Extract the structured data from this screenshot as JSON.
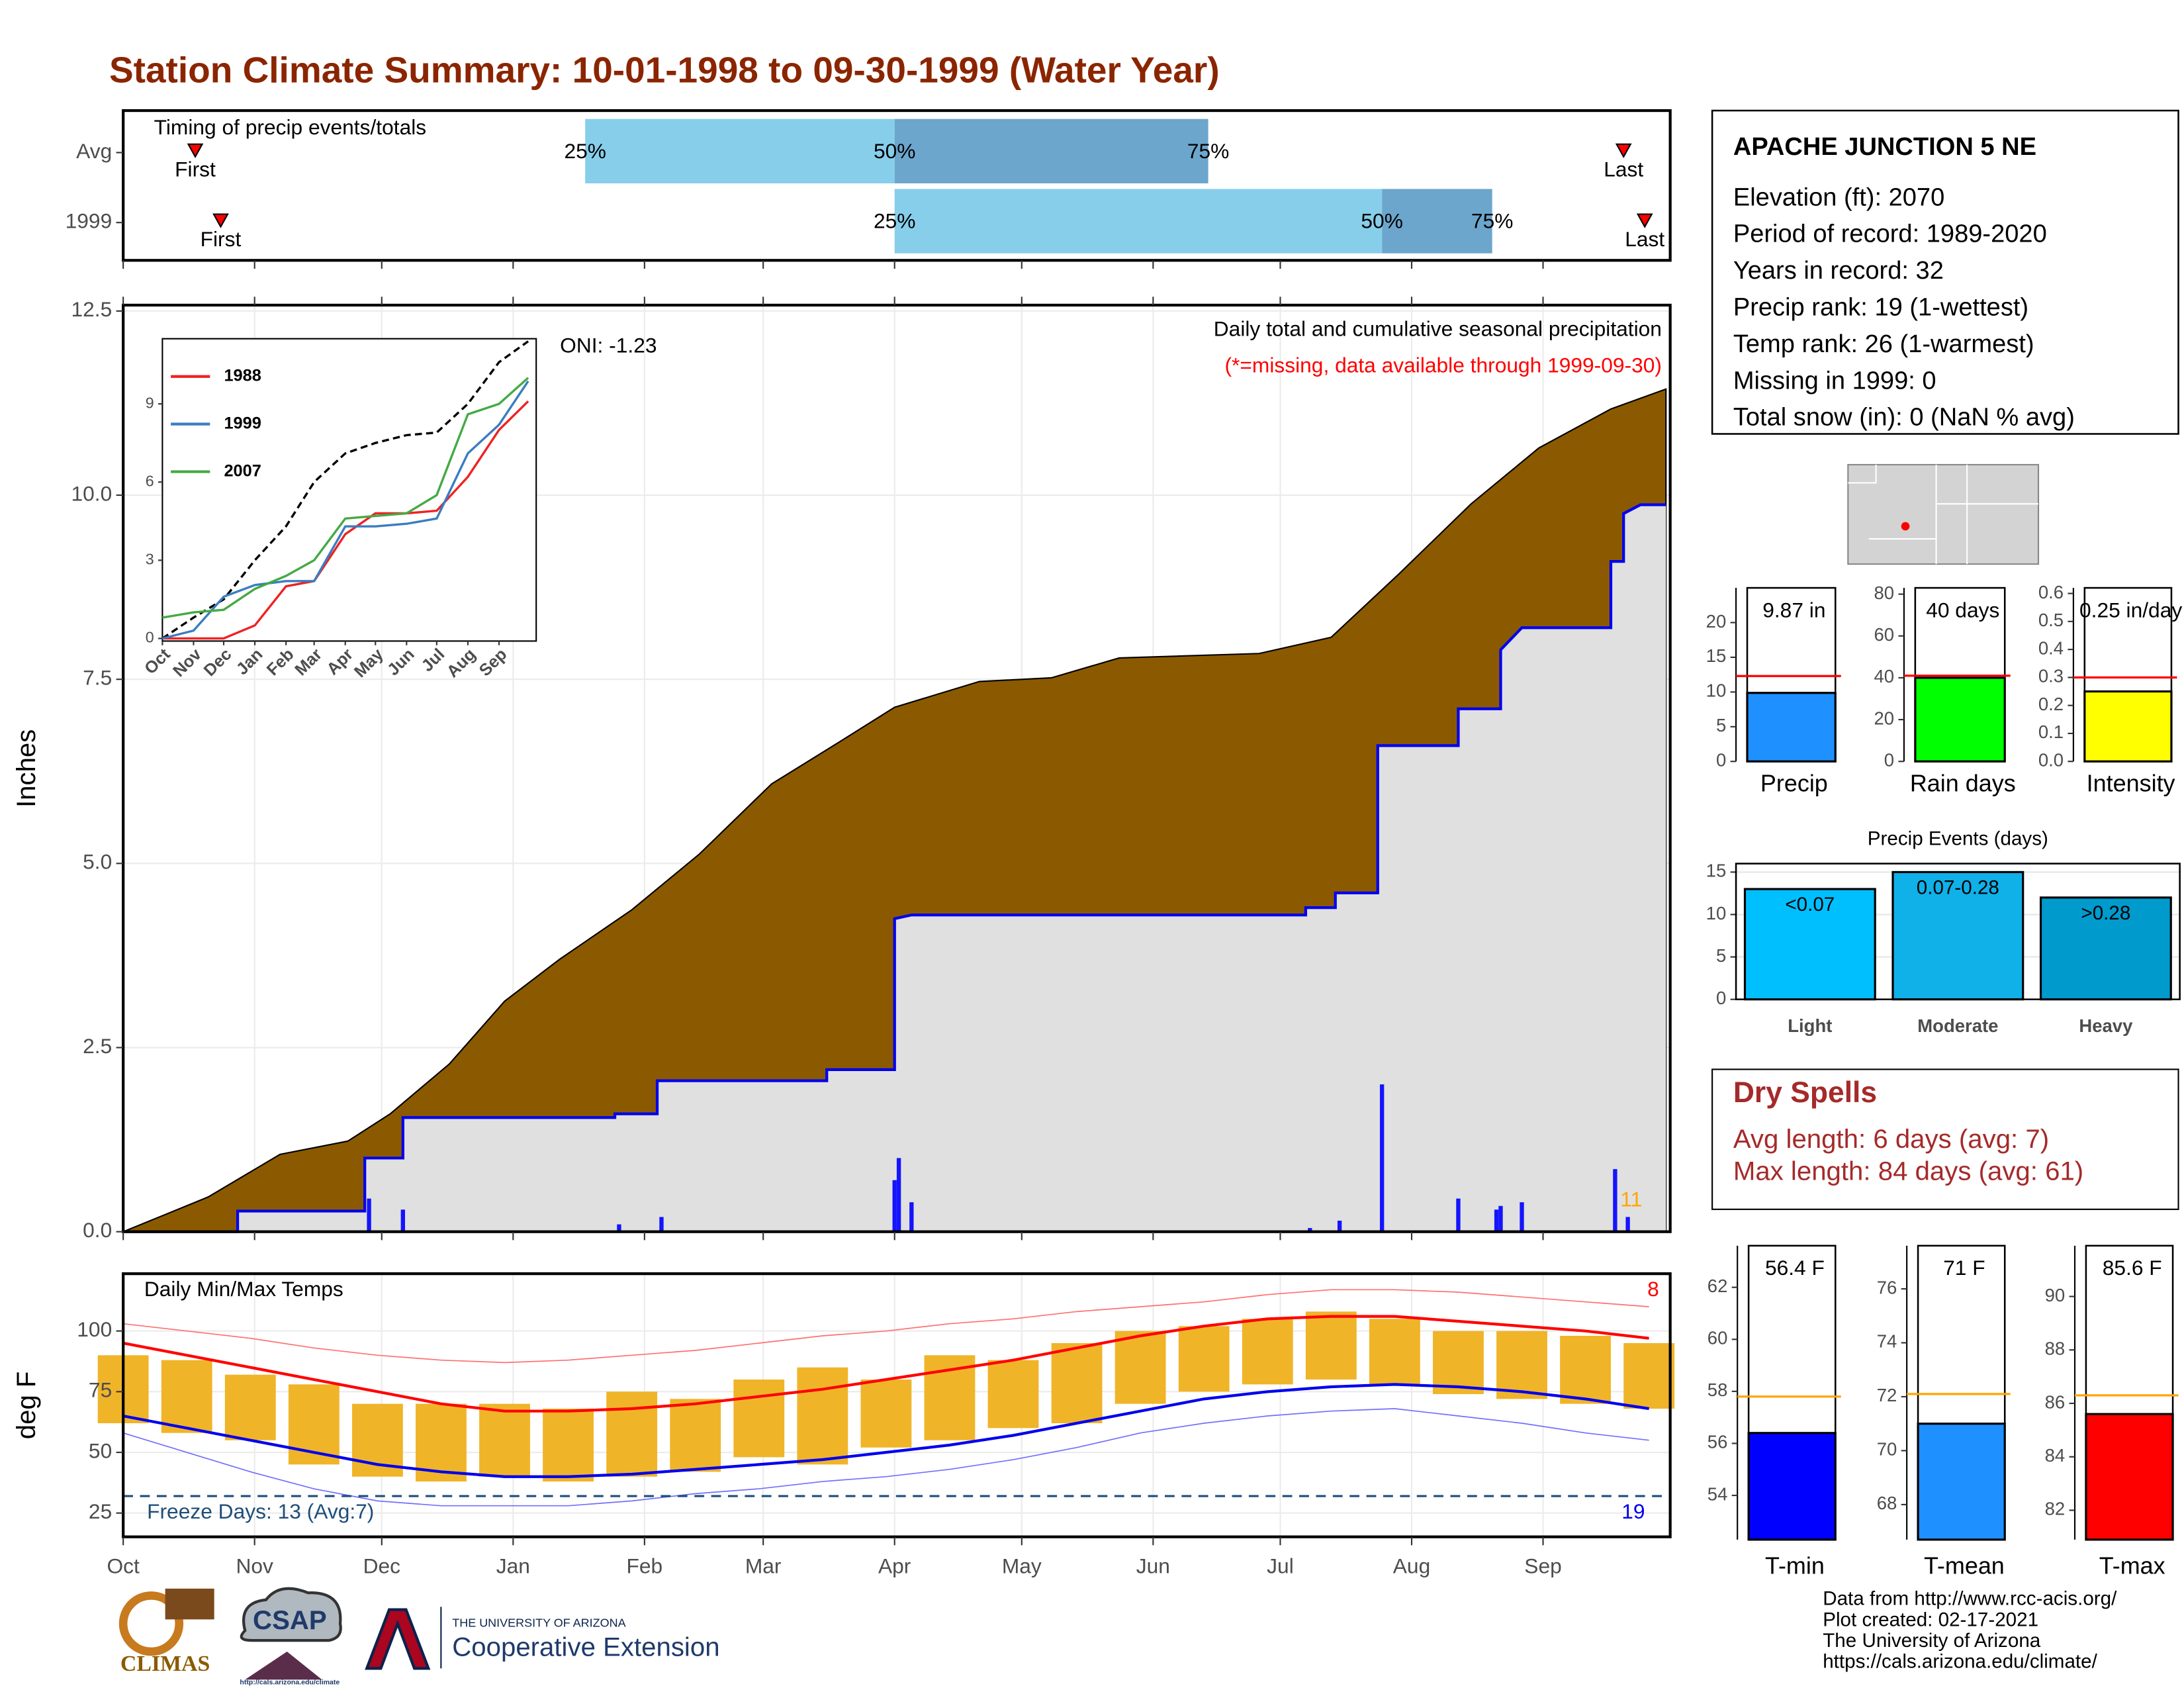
{
  "title": "Station Climate Summary: 10-01-1998 to 09-30-1999 (Water Year)",
  "station": {
    "name": "APACHE JUNCTION 5 NE",
    "lines": [
      "Elevation (ft): 2070",
      "Period of record: 1989-2020",
      "Years in record: 32",
      "Precip rank: 19 (1-wettest)",
      "Temp rank: 26 (1-warmest)",
      "Missing in 1999: 0",
      "Total snow (in): 0 (NaN % avg)"
    ]
  },
  "dry_spells": {
    "title": "Dry Spells",
    "lines": [
      "Avg length: 6 days (avg: 7)",
      "Max length: 84 days (avg: 61)"
    ]
  },
  "footer": [
    "Data from http://www.rcc-acis.org/",
    "Plot created: 02-17-2021",
    "The University of Arizona",
    "https://cals.arizona.edu/climate/"
  ],
  "logos": {
    "climas": "CLIMAS",
    "csap": "CSAP",
    "csap_url": "http://cals.arizona.edu/climate",
    "university": "THE UNIVERSITY OF ARIZONA",
    "extension": "Cooperative Extension"
  },
  "chart_data": [
    {
      "type": "timing",
      "title": "Timing of precip events/totals",
      "categories": [
        "Avg",
        "1999"
      ],
      "marker_labels": [
        "First",
        "25%",
        "50%",
        "75%",
        "Last"
      ],
      "first": [
        17,
        23
      ],
      "q25": [
        109,
        182
      ],
      "q50": [
        182,
        297
      ],
      "q75": [
        256,
        323
      ],
      "last": [
        354,
        359
      ],
      "xlim": [
        0,
        365
      ],
      "colors": [
        "#87ceeb",
        "#6ca6cd"
      ],
      "marker_color": "#ff0000"
    },
    {
      "type": "cumulative",
      "title": "Daily total and cumulative seasonal precipitation",
      "subtitle": "(*=missing, data available through 1999-09-30)",
      "annotation": "ONI: -1.23",
      "count_label": "11",
      "y_label": "Inches",
      "xlim": [
        0,
        365
      ],
      "ylim": [
        0,
        12.58
      ],
      "yticks": [
        {
          "value": 0,
          "label": "0.0"
        },
        2.5,
        {
          "value": 5,
          "label": "5.0"
        },
        7.5,
        {
          "value": 10,
          "label": "10.0"
        },
        12.5
      ],
      "xticks": [
        {
          "value": 0,
          "label": "Oct"
        },
        {
          "value": 31,
          "label": "Nov"
        },
        {
          "value": 61,
          "label": "Dec"
        },
        {
          "value": 92,
          "label": "Jan"
        },
        {
          "value": 123,
          "label": "Feb"
        },
        {
          "value": 151,
          "label": "Mar"
        },
        {
          "value": 182,
          "label": "Apr"
        },
        {
          "value": 212,
          "label": "May"
        },
        {
          "value": 243,
          "label": "Jun"
        },
        {
          "value": 273,
          "label": "Jul"
        },
        {
          "value": 304,
          "label": "Aug"
        },
        {
          "value": 335,
          "label": "Sep"
        }
      ],
      "avg_x": [
        0,
        20,
        37,
        53,
        63,
        77,
        90,
        103,
        120,
        136,
        153,
        169,
        182,
        202,
        219,
        235,
        268,
        285,
        301,
        318,
        334,
        351,
        364
      ],
      "avg_values": [
        0,
        0.47,
        1.05,
        1.23,
        1.6,
        2.28,
        3.13,
        3.7,
        4.37,
        5.13,
        6.08,
        6.65,
        7.12,
        7.47,
        7.52,
        7.79,
        7.85,
        8.07,
        8.93,
        9.88,
        10.64,
        11.17,
        11.44
      ],
      "x": [
        0,
        27,
        27,
        57,
        57,
        66,
        66,
        116,
        116,
        126,
        126,
        166,
        166,
        182,
        182,
        186,
        279,
        279,
        286,
        286,
        296,
        296,
        315,
        315,
        325,
        325,
        330,
        351,
        351,
        354,
        354,
        358,
        364
      ],
      "values": [
        0,
        0,
        0.28,
        0.28,
        1.0,
        1.0,
        1.55,
        1.55,
        1.6,
        1.6,
        2.05,
        2.05,
        2.2,
        2.2,
        4.25,
        4.3,
        4.3,
        4.4,
        4.4,
        4.6,
        4.6,
        6.6,
        6.6,
        7.1,
        7.1,
        7.9,
        8.2,
        8.2,
        9.1,
        9.1,
        9.75,
        9.87,
        9.87
      ],
      "daily_x": [
        58,
        66,
        117,
        127,
        182,
        183,
        186,
        280,
        287,
        297,
        315,
        324,
        325,
        330,
        352,
        355
      ],
      "daily_values": [
        0.45,
        0.3,
        0.1,
        0.2,
        0.7,
        1.0,
        0.4,
        0.05,
        0.15,
        2.0,
        0.45,
        0.3,
        0.35,
        0.4,
        0.85,
        0.2
      ],
      "area_color": "#8b5a00",
      "fill_color": "#e0e0e0",
      "line_color": "#0000ee",
      "bar_color": "#1414ff",
      "count_color": "#ffa500",
      "subtitle_color": "#ff0000",
      "grid": true
    },
    {
      "type": "line",
      "xlim": [
        0,
        372
      ],
      "ylim": [
        -0.1,
        11.5
      ],
      "yticks": [
        0,
        3,
        6,
        9
      ],
      "xticks": [
        {
          "value": 0,
          "label": "Oct"
        },
        {
          "value": 31,
          "label": "Nov"
        },
        {
          "value": 61,
          "label": "Dec"
        },
        {
          "value": 92,
          "label": "Jan"
        },
        {
          "value": 123,
          "label": "Feb"
        },
        {
          "value": 151,
          "label": "Mar"
        },
        {
          "value": 182,
          "label": "Apr"
        },
        {
          "value": 212,
          "label": "May"
        },
        {
          "value": 243,
          "label": "Jun"
        },
        {
          "value": 273,
          "label": "Jul"
        },
        {
          "value": 304,
          "label": "Aug"
        },
        {
          "value": 335,
          "label": "Sep"
        }
      ],
      "x": [
        0,
        31,
        61,
        92,
        123,
        151,
        182,
        212,
        243,
        273,
        304,
        335,
        364
      ],
      "series": [
        {
          "color": "#000000",
          "dashed": true,
          "values": [
            0,
            0.8,
            1.5,
            3.0,
            4.3,
            6.0,
            7.1,
            7.5,
            7.8,
            7.9,
            9.0,
            10.6,
            11.4
          ]
        },
        {
          "name": "1988",
          "color": "#ee2222",
          "values": [
            0,
            0,
            0,
            0.5,
            2.0,
            2.2,
            4.0,
            4.8,
            4.8,
            4.9,
            6.2,
            8.0,
            9.1
          ]
        },
        {
          "name": "1999",
          "color": "#3a7dc0",
          "values": [
            0,
            0.3,
            1.6,
            2.05,
            2.2,
            2.2,
            4.3,
            4.3,
            4.4,
            4.6,
            7.1,
            8.2,
            9.87
          ]
        },
        {
          "name": "2007",
          "color": "#44aa44",
          "values": [
            0.8,
            1.0,
            1.1,
            1.9,
            2.4,
            3.0,
            4.6,
            4.7,
            4.8,
            5.5,
            8.6,
            9.0,
            10.0
          ]
        }
      ]
    },
    {
      "type": "single_bar",
      "categories": [
        "Precip"
      ],
      "values": [
        9.87
      ],
      "value_labels": [
        "9.87 in"
      ],
      "reference": 12.3,
      "ylim": [
        0,
        25
      ],
      "yticks": [
        0,
        5,
        10,
        15,
        20
      ],
      "color": "#1e90ff",
      "reference_color": "#ff0000"
    },
    {
      "type": "single_bar",
      "categories": [
        "Rain days"
      ],
      "values": [
        40
      ],
      "value_labels": [
        "40 days"
      ],
      "reference": 41,
      "ylim": [
        0,
        83
      ],
      "yticks": [
        0,
        20,
        40,
        60,
        80
      ],
      "color": "#00ff00",
      "reference_color": "#ff0000"
    },
    {
      "type": "single_bar",
      "categories": [
        "Intensity"
      ],
      "values": [
        0.25
      ],
      "value_labels": [
        "0.25 in/day"
      ],
      "reference": 0.3,
      "ylim": [
        0,
        0.62
      ],
      "yticks": [
        {
          "value": 0,
          "label": "0.0"
        },
        0.1,
        0.2,
        0.3,
        0.4,
        0.5,
        0.6
      ],
      "color": "#ffff00",
      "reference_color": "#ff0000"
    },
    {
      "type": "bar",
      "title": "Precip Events (days)",
      "categories": [
        "Light",
        "Moderate",
        "Heavy"
      ],
      "values": [
        13,
        15,
        12
      ],
      "bar_labels": [
        "<0.07",
        "0.07-0.28",
        ">0.28"
      ],
      "colors": [
        "#00bfff",
        "#10b0e8",
        "#009acd"
      ],
      "ylim": [
        0,
        16
      ],
      "yticks": [
        0,
        5,
        10,
        15
      ],
      "grid": true
    },
    {
      "type": "temperature",
      "title": "Daily Min/Max Temps",
      "freeze_label": "Freeze Days: 13 (Avg:7)",
      "high_count": "8",
      "low_count": "19",
      "y_label": "deg F",
      "freeze_line": 32,
      "xlim": [
        0,
        365
      ],
      "ylim": [
        15.2,
        123.6
      ],
      "yticks": [
        25,
        50,
        75,
        100
      ],
      "xticks": [
        {
          "value": 0,
          "label": "Oct"
        },
        {
          "value": 31,
          "label": "Nov"
        },
        {
          "value": 61,
          "label": "Dec"
        },
        {
          "value": 92,
          "label": "Jan"
        },
        {
          "value": 123,
          "label": "Feb"
        },
        {
          "value": 151,
          "label": "Mar"
        },
        {
          "value": 182,
          "label": "Apr"
        },
        {
          "value": 212,
          "label": "May"
        },
        {
          "value": 243,
          "label": "Jun"
        },
        {
          "value": 273,
          "label": "Jul"
        },
        {
          "value": 304,
          "label": "Aug"
        },
        {
          "value": 335,
          "label": "Sep"
        }
      ],
      "x": [
        0,
        15,
        30,
        45,
        60,
        75,
        90,
        105,
        120,
        135,
        150,
        165,
        180,
        195,
        210,
        225,
        240,
        255,
        270,
        285,
        300,
        315,
        330,
        345,
        360
      ],
      "record_high": [
        103,
        100,
        97,
        93,
        90,
        88,
        87,
        88,
        90,
        92,
        95,
        98,
        100,
        103,
        105,
        108,
        110,
        112,
        115,
        117,
        117,
        116,
        114,
        112,
        110
      ],
      "avg_max": [
        95,
        90,
        85,
        80,
        75,
        70,
        67,
        67,
        68,
        70,
        73,
        76,
        80,
        84,
        88,
        93,
        98,
        102,
        105,
        106,
        106,
        104,
        102,
        100,
        97
      ],
      "obs_max": [
        90,
        88,
        82,
        78,
        70,
        70,
        70,
        68,
        75,
        72,
        80,
        85,
        80,
        90,
        88,
        95,
        100,
        102,
        105,
        108,
        105,
        100,
        100,
        98,
        95
      ],
      "obs_min": [
        62,
        58,
        55,
        45,
        40,
        38,
        40,
        38,
        40,
        42,
        48,
        45,
        52,
        55,
        60,
        62,
        70,
        75,
        78,
        80,
        78,
        74,
        72,
        70,
        68
      ],
      "avg_min": [
        65,
        60,
        55,
        50,
        45,
        42,
        40,
        40,
        41,
        43,
        45,
        47,
        50,
        53,
        57,
        62,
        67,
        72,
        75,
        77,
        78,
        77,
        75,
        72,
        68
      ],
      "record_low": [
        58,
        50,
        42,
        35,
        30,
        28,
        28,
        28,
        30,
        33,
        35,
        38,
        40,
        43,
        47,
        52,
        58,
        62,
        65,
        67,
        68,
        65,
        62,
        58,
        55
      ],
      "colors": {
        "record_high": "#ff7070",
        "avg_max": "#ff0000",
        "bars": "#f0b429",
        "avg_min": "#0000ee",
        "record_low": "#7070ff",
        "freeze": "#1f4e79",
        "high_count": "#ff0000",
        "low_count": "#0000ee"
      },
      "grid": true
    },
    {
      "type": "single_bar",
      "categories": [
        "T-min"
      ],
      "values": [
        56.4
      ],
      "value_labels": [
        "56.4 F"
      ],
      "reference": 57.8,
      "ylim": [
        52.3,
        63.6
      ],
      "yticks": [
        54,
        56,
        58,
        60,
        62
      ],
      "color": "#0000ff",
      "reference_color": "#ffa500"
    },
    {
      "type": "single_bar",
      "categories": [
        "T-mean"
      ],
      "values": [
        71
      ],
      "value_labels": [
        "71 F"
      ],
      "reference": 72.1,
      "ylim": [
        66.7,
        77.6
      ],
      "yticks": [
        68,
        70,
        72,
        74,
        76
      ],
      "color": "#1e90ff",
      "reference_color": "#ffa500"
    },
    {
      "type": "single_bar",
      "categories": [
        "T-max"
      ],
      "values": [
        85.6
      ],
      "value_labels": [
        "85.6 F"
      ],
      "reference": 86.3,
      "ylim": [
        80.9,
        91.9
      ],
      "yticks": [
        82,
        84,
        86,
        88,
        90
      ],
      "color": "#ff0000",
      "reference_color": "#ffa500"
    }
  ]
}
